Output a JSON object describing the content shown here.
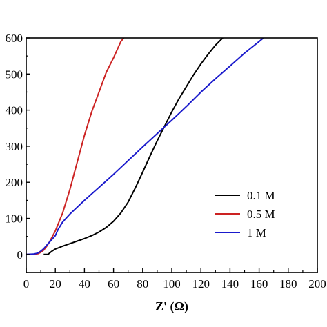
{
  "chart_data": {
    "type": "line",
    "title": "",
    "xlabel": "Z' (Ω)",
    "ylabel": "",
    "xlim": [
      0,
      200
    ],
    "ylim": [
      -50,
      600
    ],
    "xticks": [
      0,
      20,
      40,
      60,
      80,
      100,
      120,
      140,
      160,
      180,
      200
    ],
    "yticks": [
      0,
      100,
      200,
      300,
      400,
      500,
      600
    ],
    "ytick_labels": [
      "0",
      "100",
      "200",
      "300",
      "400",
      "500",
      "600"
    ],
    "grid": false,
    "legend_position": "lower-right",
    "series": [
      {
        "name": "0.1 M",
        "color": "#000000",
        "points": [
          [
            12,
            0
          ],
          [
            15,
            0
          ],
          [
            16,
            4
          ],
          [
            18,
            10
          ],
          [
            20,
            15
          ],
          [
            25,
            23
          ],
          [
            30,
            30
          ],
          [
            35,
            37
          ],
          [
            40,
            44
          ],
          [
            45,
            52
          ],
          [
            50,
            62
          ],
          [
            55,
            75
          ],
          [
            60,
            92
          ],
          [
            65,
            115
          ],
          [
            70,
            145
          ],
          [
            75,
            185
          ],
          [
            80,
            228
          ],
          [
            85,
            272
          ],
          [
            90,
            315
          ],
          [
            95,
            355
          ],
          [
            100,
            395
          ],
          [
            105,
            432
          ],
          [
            110,
            465
          ],
          [
            115,
            498
          ],
          [
            120,
            528
          ],
          [
            125,
            555
          ],
          [
            130,
            580
          ],
          [
            135,
            600
          ]
        ]
      },
      {
        "name": "0.5 M",
        "color": "#cc2222",
        "points": [
          [
            0,
            0
          ],
          [
            5,
            0
          ],
          [
            8,
            2
          ],
          [
            10,
            6
          ],
          [
            12,
            12
          ],
          [
            14,
            22
          ],
          [
            16,
            35
          ],
          [
            18,
            50
          ],
          [
            20,
            65
          ],
          [
            25,
            115
          ],
          [
            30,
            180
          ],
          [
            35,
            255
          ],
          [
            40,
            330
          ],
          [
            45,
            395
          ],
          [
            50,
            450
          ],
          [
            55,
            505
          ],
          [
            60,
            545
          ],
          [
            65,
            590
          ],
          [
            67,
            600
          ]
        ]
      },
      {
        "name": "1 M",
        "color": "#1a1acc",
        "points": [
          [
            0,
            0
          ],
          [
            5,
            1
          ],
          [
            8,
            4
          ],
          [
            10,
            9
          ],
          [
            12,
            16
          ],
          [
            15,
            30
          ],
          [
            20,
            52
          ],
          [
            22,
            70
          ],
          [
            25,
            90
          ],
          [
            30,
            112
          ],
          [
            40,
            150
          ],
          [
            50,
            186
          ],
          [
            60,
            222
          ],
          [
            70,
            260
          ],
          [
            80,
            298
          ],
          [
            90,
            335
          ],
          [
            100,
            372
          ],
          [
            110,
            410
          ],
          [
            120,
            450
          ],
          [
            130,
            487
          ],
          [
            140,
            522
          ],
          [
            150,
            558
          ],
          [
            160,
            590
          ],
          [
            163,
            600
          ]
        ]
      }
    ]
  }
}
